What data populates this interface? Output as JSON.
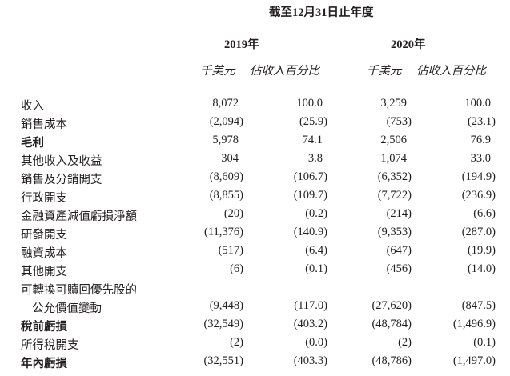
{
  "header": {
    "period": "截至12月31日止年度",
    "years": [
      "2019年",
      "2020年"
    ],
    "subheaders": [
      "千美元",
      "佔收入百分比",
      "千美元",
      "佔收入百分比"
    ]
  },
  "rows": [
    {
      "label": "收入",
      "values": [
        "8,072",
        "100.0",
        "3,259",
        "100.0"
      ]
    },
    {
      "label": "銷售成本",
      "values": [
        "(2,094)",
        "(25.9)",
        "(753)",
        "(23.1)"
      ]
    },
    {
      "label": "毛利",
      "bold": true,
      "values": [
        "5,978",
        "74.1",
        "2,506",
        "76.9"
      ]
    },
    {
      "label": "其他收入及收益",
      "values": [
        "304",
        "3.8",
        "1,074",
        "33.0"
      ]
    },
    {
      "label": "銷售及分銷開支",
      "values": [
        "(8,609)",
        "(106.7)",
        "(6,352)",
        "(194.9)"
      ]
    },
    {
      "label": "行政開支",
      "values": [
        "(8,855)",
        "(109.7)",
        "(7,722)",
        "(236.9)"
      ]
    },
    {
      "label": "金融資產減值虧損淨額",
      "values": [
        "(20)",
        "(0.2)",
        "(214)",
        "(6.6)"
      ]
    },
    {
      "label": "研發開支",
      "values": [
        "(11,376)",
        "(140.9)",
        "(9,353)",
        "(287.0)"
      ]
    },
    {
      "label": "融資成本",
      "values": [
        "(517)",
        "(6.4)",
        "(647)",
        "(19.9)"
      ]
    },
    {
      "label": "其他開支",
      "values": [
        "(6)",
        "(0.1)",
        "(456)",
        "(14.0)"
      ]
    },
    {
      "label": "可轉換可贖回優先股的",
      "values": [
        "",
        "",
        "",
        ""
      ]
    },
    {
      "label": "公允價值變動",
      "indent": true,
      "values": [
        "(9,448)",
        "(117.0)",
        "(27,620)",
        "(847.5)"
      ]
    },
    {
      "label": "稅前虧損",
      "bold": true,
      "values": [
        "(32,549)",
        "(403.2)",
        "(48,784)",
        "(1,496.9)"
      ]
    },
    {
      "label": "所得稅開支",
      "values": [
        "(2)",
        "(0.0)",
        "(2)",
        "(0.1)"
      ]
    },
    {
      "label": "年內虧損",
      "bold": true,
      "values": [
        "(32,551)",
        "(403.3)",
        "(48,786)",
        "(1,497.0)"
      ]
    }
  ]
}
